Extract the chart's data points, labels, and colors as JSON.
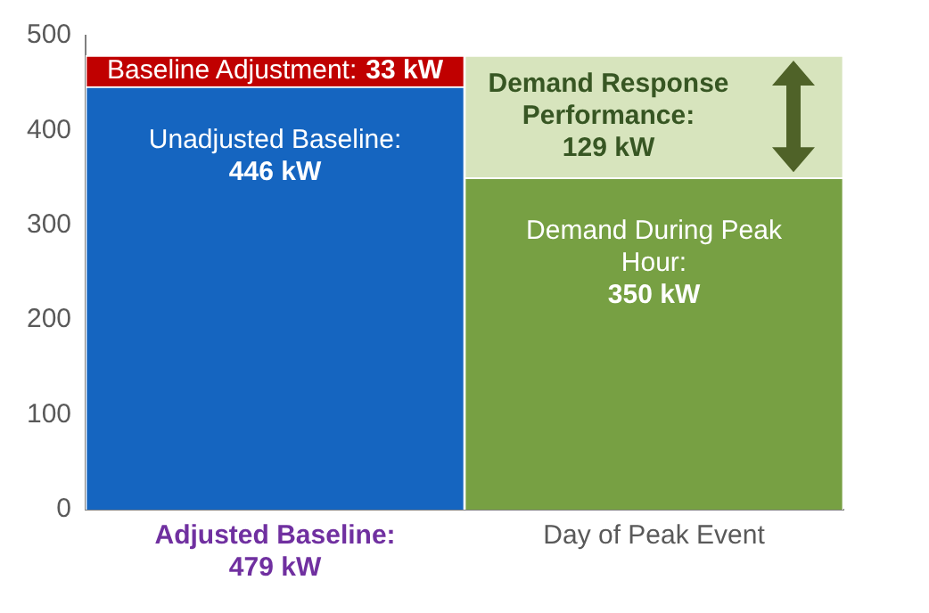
{
  "chart_data": {
    "type": "bar",
    "stacked": true,
    "categories": [
      "Adjusted Baseline: 479 kW",
      "Day of Peak Event"
    ],
    "series": [
      {
        "colors": [
          "#1565c0",
          "#77a043"
        ],
        "values": [
          446,
          350
        ],
        "value_labels": [
          "Unadjusted Baseline: 446 kW",
          "Demand During Peak Hour: 350 kW"
        ]
      },
      {
        "colors": [
          "#c00000",
          "#d7e4bd"
        ],
        "values": [
          33,
          129
        ],
        "value_labels": [
          "Baseline Adjustment: 33 kW",
          "Demand Response Performance: 129 kW"
        ]
      }
    ],
    "ylim": [
      0,
      500
    ],
    "yticks": [
      0,
      100,
      200,
      300,
      400,
      500
    ],
    "grid": false,
    "legend": false
  }
}
